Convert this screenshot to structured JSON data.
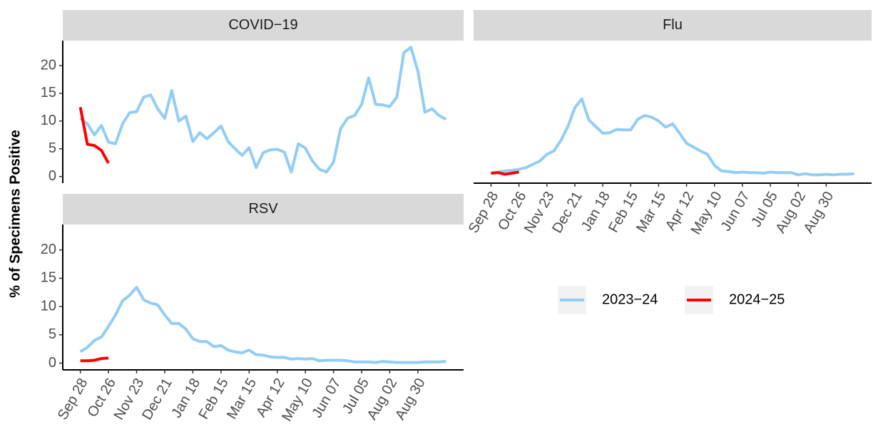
{
  "chart_data": {
    "type": "line",
    "ylabel": "% of Specimens Positive",
    "ylim": [
      -1.2,
      24.5
    ],
    "yticks": [
      0,
      5,
      10,
      15,
      20
    ],
    "xlim": [
      -2.5,
      54.5
    ],
    "categories": [
      "Sep 28",
      null,
      null,
      null,
      "Oct 26",
      null,
      null,
      null,
      "Nov 23",
      null,
      null,
      null,
      "Dec 21",
      null,
      null,
      null,
      "Jan 18",
      null,
      null,
      null,
      "Feb 15",
      null,
      null,
      null,
      "Mar 15",
      null,
      null,
      null,
      "Apr 12",
      null,
      null,
      null,
      "May 10",
      null,
      null,
      null,
      "Jun 07",
      null,
      null,
      null,
      "Jul 05",
      null,
      null,
      null,
      "Aug 02",
      null,
      null,
      null,
      "Aug 30",
      null,
      null,
      null,
      null
    ],
    "legend": [
      {
        "name": "2023−24",
        "color": "#92CDF6"
      },
      {
        "name": "2024−25",
        "color": "#FF0000"
      }
    ],
    "facets": [
      {
        "title": "COVID−19",
        "series": [
          {
            "values": [
              10.5,
              9.5,
              7.5,
              9.2,
              6.2,
              5.9,
              9.5,
              11.5,
              11.7,
              14.3,
              14.7,
              12.2,
              10.5,
              15.5,
              10.0,
              10.9,
              6.3,
              7.9,
              6.8,
              7.9,
              9.1,
              6.3,
              5.0,
              3.8,
              5.2,
              1.6,
              4.3,
              4.8,
              4.9,
              4.4,
              0.8,
              5.9,
              5.1,
              2.8,
              1.3,
              0.8,
              2.6,
              8.6,
              10.5,
              11.0,
              13.0,
              17.8,
              13.0,
              12.9,
              12.6,
              14.3,
              22.3,
              23.3,
              19.0,
              11.6,
              12.2,
              11.0,
              10.3
            ]
          },
          {
            "values": [
              12.5,
              5.8,
              5.6,
              4.7,
              2.4,
              null,
              null,
              null,
              null,
              null,
              null,
              null,
              null,
              null,
              null,
              null,
              null,
              null,
              null,
              null,
              null,
              null,
              null,
              null,
              null,
              null,
              null,
              null,
              null,
              null,
              null,
              null,
              null,
              null,
              null,
              null,
              null,
              null,
              null,
              null,
              null,
              null,
              null,
              null,
              null,
              null,
              null,
              null,
              null,
              null,
              null,
              null,
              null
            ]
          }
        ]
      },
      {
        "title": "Flu",
        "series": [
          {
            "values": [
              0.6,
              0.8,
              1.0,
              1.1,
              1.3,
              1.6,
              2.2,
              2.8,
              4.0,
              4.6,
              6.5,
              9.0,
              12.4,
              14.0,
              10.2,
              9.0,
              7.8,
              7.9,
              8.5,
              8.4,
              8.4,
              10.3,
              11.0,
              10.7,
              10.0,
              8.9,
              9.5,
              7.8,
              6.0,
              5.3,
              4.6,
              4.0,
              2.0,
              1.0,
              0.9,
              0.7,
              0.8,
              0.7,
              0.7,
              0.6,
              0.8,
              0.7,
              0.7,
              0.7,
              0.3,
              0.5,
              0.3,
              0.3,
              0.4,
              0.3,
              0.4,
              0.4,
              0.5
            ]
          },
          {
            "values": [
              0.6,
              0.7,
              0.4,
              0.6,
              0.8,
              null,
              null,
              null,
              null,
              null,
              null,
              null,
              null,
              null,
              null,
              null,
              null,
              null,
              null,
              null,
              null,
              null,
              null,
              null,
              null,
              null,
              null,
              null,
              null,
              null,
              null,
              null,
              null,
              null,
              null,
              null,
              null,
              null,
              null,
              null,
              null,
              null,
              null,
              null,
              null,
              null,
              null,
              null,
              null,
              null,
              null,
              null,
              null
            ]
          }
        ]
      },
      {
        "title": "RSV",
        "series": [
          {
            "values": [
              2.0,
              2.8,
              4.0,
              4.6,
              6.5,
              8.5,
              11.0,
              12.0,
              13.4,
              11.2,
              10.6,
              10.3,
              8.5,
              7.0,
              7.0,
              6.0,
              4.3,
              3.8,
              3.8,
              2.9,
              3.1,
              2.3,
              2.0,
              1.8,
              2.3,
              1.5,
              1.4,
              1.1,
              1.0,
              1.0,
              0.7,
              0.8,
              0.7,
              0.8,
              0.4,
              0.5,
              0.5,
              0.5,
              0.4,
              0.2,
              0.2,
              0.2,
              0.1,
              0.3,
              0.2,
              0.1,
              0.1,
              0.1,
              0.1,
              0.2,
              0.2,
              0.2,
              0.3
            ]
          },
          {
            "values": [
              0.4,
              0.4,
              0.5,
              0.8,
              0.9,
              null,
              null,
              null,
              null,
              null,
              null,
              null,
              null,
              null,
              null,
              null,
              null,
              null,
              null,
              null,
              null,
              null,
              null,
              null,
              null,
              null,
              null,
              null,
              null,
              null,
              null,
              null,
              null,
              null,
              null,
              null,
              null,
              null,
              null,
              null,
              null,
              null,
              null,
              null,
              null,
              null,
              null,
              null,
              null,
              null,
              null,
              null,
              null
            ]
          }
        ]
      }
    ]
  }
}
